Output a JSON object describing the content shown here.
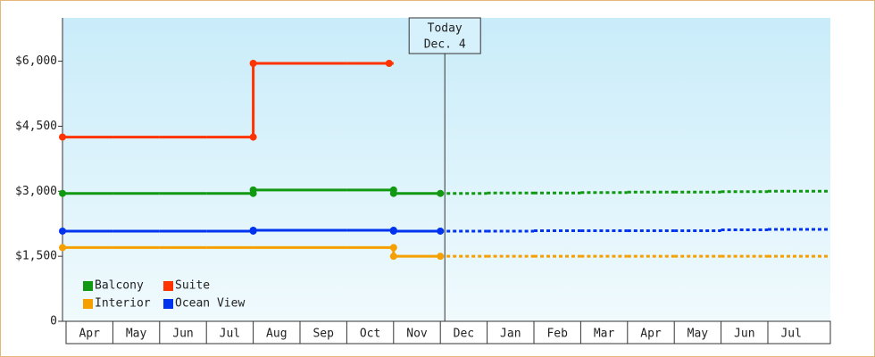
{
  "chart_data": {
    "type": "step-line",
    "categories": [
      "Apr",
      "May",
      "Jun",
      "Jul",
      "Aug",
      "Sep",
      "Oct",
      "Nov",
      "Dec",
      "Jan",
      "Feb",
      "Mar",
      "Apr",
      "May",
      "Jun",
      "Jul"
    ],
    "series": [
      {
        "name": "Balcony",
        "color": "#119911",
        "values": [
          2950,
          2950,
          2950,
          2950,
          3030,
          3030,
          3030,
          2950,
          2950,
          2960,
          2960,
          2970,
          2980,
          2980,
          2990,
          3000
        ]
      },
      {
        "name": "Suite",
        "color": "#ff3300",
        "values": [
          4250,
          4250,
          4250,
          4250,
          5950,
          5950,
          5950,
          null,
          null,
          null,
          null,
          null,
          null,
          null,
          null,
          null
        ]
      },
      {
        "name": "Interior",
        "color": "#f5a000",
        "values": [
          1700,
          1700,
          1700,
          1700,
          1700,
          1700,
          1700,
          1500,
          1500,
          1500,
          1500,
          1500,
          1500,
          1500,
          1500,
          1500
        ]
      },
      {
        "name": "Ocean View",
        "color": "#0033ee",
        "values": [
          2080,
          2080,
          2080,
          2080,
          2100,
          2100,
          2100,
          2080,
          2080,
          2080,
          2090,
          2090,
          2090,
          2090,
          2110,
          2120
        ]
      }
    ],
    "ylim": [
      0,
      7000
    ],
    "yticks": [
      0,
      {
        "value": 1500,
        "label": "$1,500"
      },
      {
        "value": 3000,
        "label": "$3,000"
      },
      {
        "value": 4500,
        "label": "$4,500"
      },
      {
        "value": 6000,
        "label": "$6,000"
      }
    ],
    "annotation": {
      "lines": [
        "Today",
        "Dec. 4"
      ],
      "x": "Dec"
    },
    "legend": "bottom-left"
  }
}
